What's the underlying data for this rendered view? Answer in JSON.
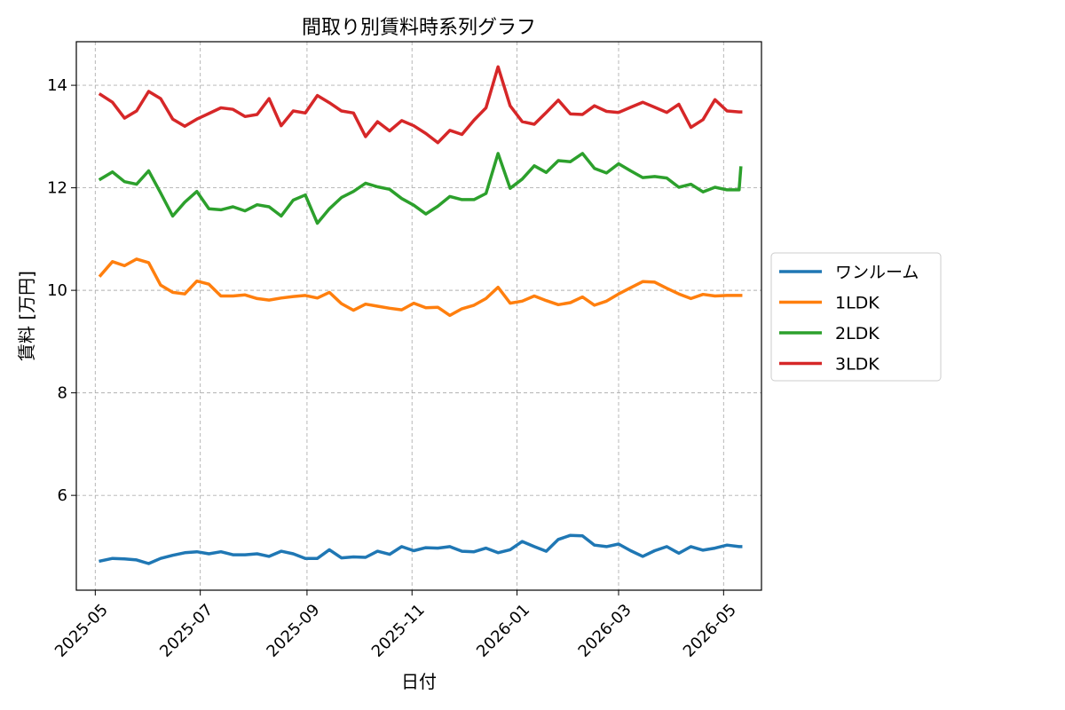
{
  "chart_data": {
    "type": "line",
    "title": "間取り別賃料時系列グラフ",
    "xlabel": "日付",
    "ylabel": "賃料 [万円]",
    "x_axis": {
      "type": "date",
      "min": "2025-04-20",
      "max": "2026-05-23",
      "ticks": [
        "2025-05-01",
        "2025-07-01",
        "2025-09-01",
        "2025-11-01",
        "2026-01-01",
        "2026-03-01",
        "2026-05-01"
      ],
      "tick_labels": [
        "2025-05",
        "2025-07",
        "2025-09",
        "2025-11",
        "2026-01",
        "2026-03",
        "2026-05"
      ]
    },
    "y_axis": {
      "min": 4.15,
      "max": 14.85,
      "ticks": [
        6,
        8,
        10,
        12,
        14
      ],
      "tick_labels": [
        "6",
        "8",
        "10",
        "12",
        "14"
      ]
    },
    "grid": true,
    "legend_position": "outside-right",
    "x": [
      "2025-05-04",
      "2025-05-11",
      "2025-05-18",
      "2025-05-25",
      "2025-06-01",
      "2025-06-08",
      "2025-06-15",
      "2025-06-22",
      "2025-06-29",
      "2025-07-06",
      "2025-07-13",
      "2025-07-20",
      "2025-07-27",
      "2025-08-03",
      "2025-08-10",
      "2025-08-17",
      "2025-08-24",
      "2025-08-31",
      "2025-09-07",
      "2025-09-14",
      "2025-09-21",
      "2025-09-28",
      "2025-10-05",
      "2025-10-12",
      "2025-10-19",
      "2025-10-26",
      "2025-11-02",
      "2025-11-09",
      "2025-11-16",
      "2025-11-23",
      "2025-11-30",
      "2025-12-07",
      "2025-12-14",
      "2025-12-21",
      "2025-12-28",
      "2026-01-04",
      "2026-01-11",
      "2026-01-18",
      "2026-01-25",
      "2026-02-01",
      "2026-02-08",
      "2026-02-15",
      "2026-02-22",
      "2026-03-01",
      "2026-03-08",
      "2026-03-15",
      "2026-03-22",
      "2026-03-29",
      "2026-04-05",
      "2026-04-12",
      "2026-04-19",
      "2026-04-26",
      "2026-05-03",
      "2026-05-10",
      "2026-05-11"
    ],
    "series": [
      {
        "name": "ワンルーム",
        "color": "#1f77b4",
        "values": [
          4.72,
          4.77,
          4.76,
          4.74,
          4.67,
          4.77,
          4.83,
          4.88,
          4.9,
          4.86,
          4.9,
          4.84,
          4.84,
          4.86,
          4.81,
          4.91,
          4.86,
          4.77,
          4.77,
          4.94,
          4.78,
          4.8,
          4.79,
          4.91,
          4.85,
          5.0,
          4.92,
          4.98,
          4.97,
          5.0,
          4.91,
          4.9,
          4.97,
          4.88,
          4.94,
          5.1,
          5.0,
          4.91,
          5.14,
          5.22,
          5.21,
          5.03,
          5.0,
          5.05,
          4.92,
          4.81,
          4.92,
          5.0,
          4.87,
          5.0,
          4.93,
          4.97,
          5.03,
          5.0,
          5.0
        ]
      },
      {
        "name": "1LDK",
        "color": "#ff7f0e",
        "values": [
          10.29,
          10.56,
          10.48,
          10.61,
          10.54,
          10.1,
          9.96,
          9.93,
          10.18,
          10.12,
          9.89,
          9.89,
          9.91,
          9.84,
          9.81,
          9.85,
          9.88,
          9.9,
          9.85,
          9.96,
          9.74,
          9.61,
          9.73,
          9.69,
          9.65,
          9.62,
          9.75,
          9.66,
          9.67,
          9.51,
          9.64,
          9.71,
          9.84,
          10.06,
          9.75,
          9.79,
          9.89,
          9.8,
          9.72,
          9.76,
          9.87,
          9.71,
          9.79,
          9.93,
          10.05,
          10.17,
          10.16,
          10.04,
          9.93,
          9.84,
          9.92,
          9.89,
          9.9,
          9.9,
          9.9
        ]
      },
      {
        "name": "2LDK",
        "color": "#2ca02c",
        "values": [
          12.17,
          12.31,
          12.12,
          12.07,
          12.33,
          11.9,
          11.45,
          11.72,
          11.93,
          11.59,
          11.57,
          11.63,
          11.55,
          11.67,
          11.63,
          11.45,
          11.76,
          11.86,
          11.31,
          11.59,
          11.81,
          11.93,
          12.09,
          12.02,
          11.97,
          11.79,
          11.66,
          11.49,
          11.64,
          11.83,
          11.77,
          11.77,
          11.89,
          12.67,
          11.99,
          12.17,
          12.43,
          12.3,
          12.53,
          12.51,
          12.67,
          12.38,
          12.29,
          12.47,
          12.33,
          12.2,
          12.22,
          12.19,
          12.01,
          12.07,
          11.92,
          12.01,
          11.96,
          11.96,
          12.39
        ]
      },
      {
        "name": "3LDK",
        "color": "#d62728",
        "values": [
          13.82,
          13.67,
          13.36,
          13.5,
          13.88,
          13.74,
          13.34,
          13.2,
          13.34,
          13.45,
          13.56,
          13.53,
          13.39,
          13.43,
          13.74,
          13.21,
          13.5,
          13.46,
          13.8,
          13.66,
          13.5,
          13.46,
          13.0,
          13.29,
          13.11,
          13.31,
          13.21,
          13.06,
          12.88,
          13.12,
          13.04,
          13.32,
          13.56,
          14.36,
          13.6,
          13.29,
          13.24,
          13.47,
          13.71,
          13.44,
          13.43,
          13.6,
          13.49,
          13.47,
          13.57,
          13.67,
          13.57,
          13.47,
          13.63,
          13.18,
          13.33,
          13.72,
          13.5,
          13.48,
          13.48
        ]
      }
    ]
  }
}
